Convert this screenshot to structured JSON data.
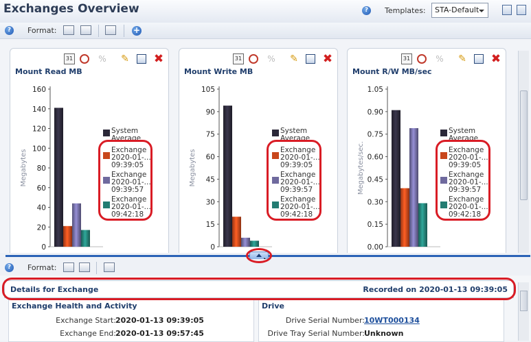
{
  "header": {
    "title": "Exchanges Overview",
    "templates_label": "Templates:",
    "template_selected": "STA-Default"
  },
  "toolbar": {
    "format_label": "Format:"
  },
  "bottom_toolbar": {
    "format_label": "Format:"
  },
  "charts": [
    {
      "title": "Mount Read MB",
      "ylabel": "Megabytes",
      "ylim": [
        0,
        160
      ],
      "tick_step": 20,
      "tick_labels": [
        "0",
        "20",
        "40",
        "60",
        "80",
        "100",
        "120",
        "140",
        "160"
      ],
      "values": [
        141,
        21,
        44,
        17
      ]
    },
    {
      "title": "Mount Write MB",
      "ylabel": "Megabytes",
      "ylim": [
        0,
        105
      ],
      "tick_step": 15,
      "tick_labels": [
        "0",
        "15",
        "30",
        "45",
        "60",
        "75",
        "90",
        "105"
      ],
      "values": [
        94,
        20,
        6,
        4
      ]
    },
    {
      "title": "Mount R/W MB/sec",
      "ylabel": "Megabytes/sec.",
      "ylim": [
        0,
        1.05
      ],
      "tick_step": 0.15,
      "tick_labels": [
        "0.00",
        "0.15",
        "0.30",
        "0.45",
        "0.60",
        "0.75",
        "0.90",
        "1.05"
      ],
      "values": [
        0.91,
        0.39,
        0.79,
        0.29
      ]
    }
  ],
  "chart_data": [
    {
      "type": "bar",
      "title": "Mount Read MB",
      "ylabel": "Megabytes",
      "ylim": [
        0,
        160
      ],
      "series": [
        {
          "name": "System Average",
          "values": [
            141
          ]
        },
        {
          "name": "Exchange 2020-01-... 09:39:05",
          "values": [
            21
          ]
        },
        {
          "name": "Exchange 2020-01-... 09:39:57",
          "values": [
            44
          ]
        },
        {
          "name": "Exchange 2020-01-... 09:42:18",
          "values": [
            17
          ]
        }
      ]
    },
    {
      "type": "bar",
      "title": "Mount Write MB",
      "ylabel": "Megabytes",
      "ylim": [
        0,
        105
      ],
      "series": [
        {
          "name": "System Average",
          "values": [
            94
          ]
        },
        {
          "name": "Exchange 2020-01-... 09:39:05",
          "values": [
            20
          ]
        },
        {
          "name": "Exchange 2020-01-... 09:39:57",
          "values": [
            6
          ]
        },
        {
          "name": "Exchange 2020-01-... 09:42:18",
          "values": [
            4
          ]
        }
      ]
    },
    {
      "type": "bar",
      "title": "Mount R/W MB/sec",
      "ylabel": "Megabytes/sec.",
      "ylim": [
        0,
        1.05
      ],
      "series": [
        {
          "name": "System Average",
          "values": [
            0.91
          ]
        },
        {
          "name": "Exchange 2020-01-... 09:39:05",
          "values": [
            0.39
          ]
        },
        {
          "name": "Exchange 2020-01-... 09:39:57",
          "values": [
            0.79
          ]
        },
        {
          "name": "Exchange 2020-01-... 09:42:18",
          "values": [
            0.29
          ]
        }
      ]
    }
  ],
  "legend": [
    {
      "lines": [
        "System",
        "Average"
      ],
      "color": "#2b2838"
    },
    {
      "lines": [
        "Exchange",
        "2020-01-...",
        "09:39:05"
      ],
      "color": "#c8461b"
    },
    {
      "lines": [
        "Exchange",
        "2020-01-...",
        "09:39:57"
      ],
      "color": "#6f6a9e"
    },
    {
      "lines": [
        "Exchange",
        "2020-01-...",
        "09:42:18"
      ],
      "color": "#237c72"
    }
  ],
  "details": {
    "title": "Details for Exchange",
    "recorded": "Recorded on 2020-01-13 09:39:05",
    "health": {
      "heading": "Exchange Health and Activity",
      "start_label": "Exchange Start:",
      "start_value": "2020-01-13 09:39:05",
      "end_label": "Exchange End:",
      "end_value": "2020-01-13 09:57:45"
    },
    "drive": {
      "heading": "Drive",
      "serial_label": "Drive Serial Number:",
      "serial_value": "10WT000134",
      "tray_label": "Drive Tray Serial Number:",
      "tray_value": "Unknown"
    }
  },
  "icons": {
    "help": "?",
    "plus": "+",
    "cal": "31",
    "pct": "%",
    "pencil": "✎",
    "close": "✖"
  },
  "colors": {
    "accent": "#1f3d6b",
    "callout": "#d91c25",
    "splitter": "#2a62b6"
  }
}
